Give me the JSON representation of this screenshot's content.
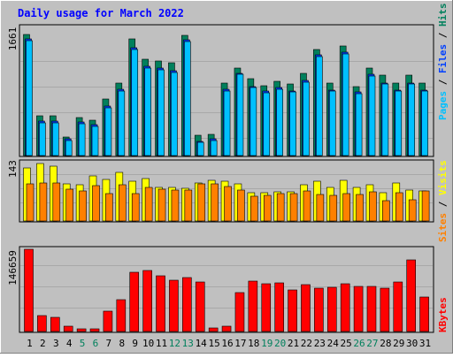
{
  "title": "Daily usage for March 2022",
  "colors": {
    "outer_bg": "#c0c0c0",
    "panel_bg": "#c0c0c0",
    "title_text": "#0000ff",
    "hits": "#00805c",
    "files": "#0040ff",
    "pages": "#00c0ff",
    "visits": "#ffff00",
    "sites": "#ff8000",
    "kbytes": "#ff0000",
    "weekend_label": "#00805c",
    "weekday_label": "#000000",
    "slash": "#000000"
  },
  "chart_data": [
    {
      "type": "bar",
      "panel": "top",
      "ymax_label": "1661",
      "ylim": [
        0,
        1661
      ],
      "legend": [
        "Pages",
        "Files",
        "Hits"
      ],
      "categories": [
        "1",
        "2",
        "3",
        "4",
        "5",
        "6",
        "7",
        "8",
        "9",
        "10",
        "11",
        "12",
        "13",
        "14",
        "15",
        "16",
        "17",
        "18",
        "19",
        "20",
        "21",
        "22",
        "23",
        "24",
        "25",
        "26",
        "27",
        "28",
        "29",
        "30",
        "31"
      ],
      "series": [
        {
          "name": "Hits",
          "values": [
            1661,
            550,
            540,
            250,
            520,
            480,
            770,
            1000,
            1600,
            1320,
            1300,
            1270,
            1650,
            280,
            290,
            1000,
            1200,
            1050,
            960,
            1020,
            980,
            1130,
            1450,
            990,
            1500,
            940,
            1200,
            1100,
            1000,
            1100,
            1000
          ]
        },
        {
          "name": "Files",
          "values": [
            1600,
            470,
            470,
            230,
            460,
            420,
            680,
            910,
            1480,
            1220,
            1200,
            1160,
            1590,
            200,
            230,
            910,
            1130,
            950,
            880,
            930,
            890,
            1030,
            1380,
            900,
            1420,
            870,
            1110,
            1000,
            900,
            1000,
            900
          ]
        },
        {
          "name": "Pages",
          "values": [
            1580,
            450,
            450,
            210,
            440,
            400,
            660,
            890,
            1460,
            1200,
            1180,
            1140,
            1570,
            180,
            210,
            890,
            1110,
            930,
            860,
            910,
            870,
            1010,
            1360,
            880,
            1400,
            850,
            1090,
            980,
            880,
            980,
            880
          ]
        }
      ]
    },
    {
      "type": "bar",
      "panel": "middle",
      "ymax_label": "143",
      "ylim": [
        0,
        143
      ],
      "legend": [
        "Sites",
        "Visits"
      ],
      "categories": [
        "1",
        "2",
        "3",
        "4",
        "5",
        "6",
        "7",
        "8",
        "9",
        "10",
        "11",
        "12",
        "13",
        "14",
        "15",
        "16",
        "17",
        "18",
        "19",
        "20",
        "21",
        "22",
        "23",
        "24",
        "25",
        "26",
        "27",
        "28",
        "29",
        "30",
        "31"
      ],
      "series": [
        {
          "name": "Visits",
          "values": [
            130,
            140,
            134,
            92,
            88,
            111,
            101,
            120,
            98,
            104,
            82,
            82,
            81,
            94,
            100,
            98,
            90,
            70,
            70,
            72,
            72,
            88,
            98,
            82,
            100,
            82,
            89,
            70,
            94,
            76,
            74
          ]
        },
        {
          "name": "Sites",
          "values": [
            90,
            94,
            93,
            77,
            73,
            87,
            67,
            89,
            67,
            82,
            77,
            76,
            75,
            92,
            90,
            85,
            75,
            61,
            63,
            67,
            68,
            74,
            64,
            63,
            68,
            66,
            72,
            49,
            70,
            53,
            74
          ]
        }
      ]
    },
    {
      "type": "bar",
      "panel": "bottom",
      "ymax_label": "146659",
      "ylim": [
        0,
        146659
      ],
      "legend": [
        "KBytes"
      ],
      "categories": [
        "1",
        "2",
        "3",
        "4",
        "5",
        "6",
        "7",
        "8",
        "9",
        "10",
        "11",
        "12",
        "13",
        "14",
        "15",
        "16",
        "17",
        "18",
        "19",
        "20",
        "21",
        "22",
        "23",
        "24",
        "25",
        "26",
        "27",
        "28",
        "29",
        "30",
        "31"
      ],
      "series": [
        {
          "name": "KBytes",
          "values": [
            146659,
            29000,
            25000,
            10000,
            5000,
            5000,
            36000,
            56000,
            106000,
            109000,
            99000,
            92000,
            96000,
            89000,
            6000,
            9000,
            69000,
            90000,
            85000,
            86000,
            74000,
            84000,
            78000,
            79000,
            85000,
            81000,
            80000,
            78000,
            89000,
            128000,
            61000
          ]
        }
      ]
    }
  ],
  "x_labels": [
    "1",
    "2",
    "3",
    "4",
    "5",
    "6",
    "7",
    "8",
    "9",
    "10",
    "11",
    "12",
    "13",
    "14",
    "15",
    "16",
    "17",
    "18",
    "19",
    "20",
    "21",
    "22",
    "23",
    "24",
    "25",
    "26",
    "27",
    "28",
    "29",
    "30",
    "31"
  ],
  "weekend_days": [
    "5",
    "6",
    "12",
    "13",
    "19",
    "20",
    "26",
    "27"
  ]
}
